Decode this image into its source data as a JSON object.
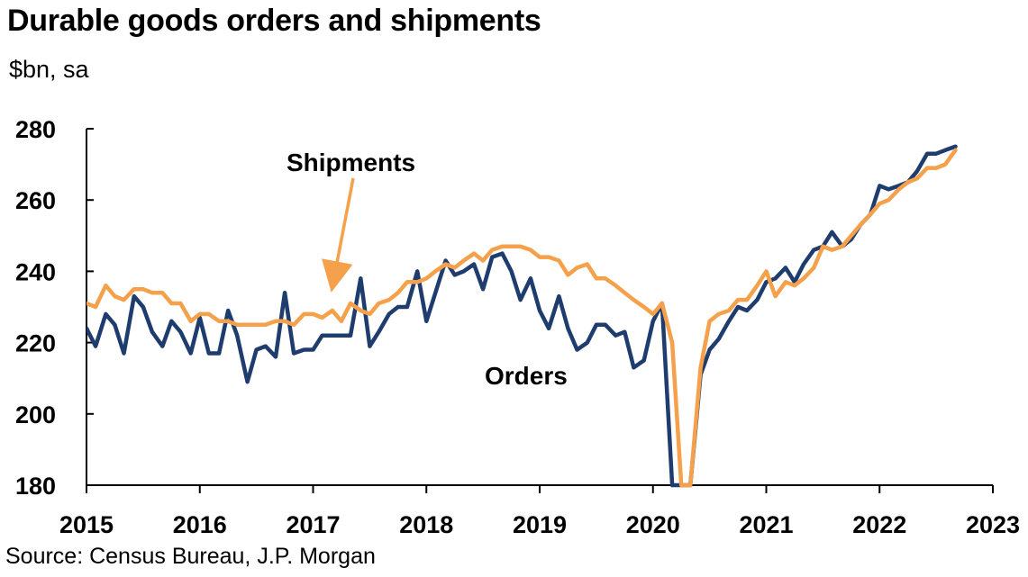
{
  "header": {
    "title": "Durable goods orders and shipments",
    "subtitle": "$bn, sa"
  },
  "footer": {
    "source": "Source: Census Bureau, J.P. Morgan"
  },
  "colors": {
    "orders": "#1F3C6E",
    "shipments": "#F5A04A"
  },
  "chart_data": {
    "type": "line",
    "title": "Durable goods orders and shipments",
    "ylabel": "$bn, sa",
    "ylim": [
      180,
      280
    ],
    "yticks": [
      180,
      200,
      220,
      240,
      260,
      280
    ],
    "xlim": [
      2015,
      2023
    ],
    "xticks": [
      "2015",
      "2016",
      "2017",
      "2018",
      "2019",
      "2020",
      "2021",
      "2022",
      "2023"
    ],
    "grid": false,
    "legend": "inline labels",
    "annotations": [
      {
        "text": "Shipments",
        "points_to": "Shipments"
      },
      {
        "text": "Orders",
        "points_to": "Orders"
      }
    ],
    "series": [
      {
        "name": "Orders",
        "x": [
          2015.0,
          2015.08,
          2015.17,
          2015.25,
          2015.33,
          2015.42,
          2015.5,
          2015.58,
          2015.67,
          2015.75,
          2015.83,
          2015.92,
          2016.0,
          2016.08,
          2016.17,
          2016.25,
          2016.33,
          2016.42,
          2016.5,
          2016.58,
          2016.67,
          2016.75,
          2016.83,
          2016.92,
          2017.0,
          2017.08,
          2017.17,
          2017.25,
          2017.33,
          2017.42,
          2017.5,
          2017.58,
          2017.67,
          2017.75,
          2017.83,
          2017.92,
          2018.0,
          2018.08,
          2018.17,
          2018.25,
          2018.33,
          2018.42,
          2018.5,
          2018.58,
          2018.67,
          2018.75,
          2018.83,
          2018.92,
          2019.0,
          2019.08,
          2019.17,
          2019.25,
          2019.33,
          2019.42,
          2019.5,
          2019.58,
          2019.67,
          2019.75,
          2019.83,
          2019.92,
          2020.0,
          2020.08,
          2020.17,
          2020.25,
          2020.33,
          2020.42,
          2020.5,
          2020.58,
          2020.67,
          2020.75,
          2020.83,
          2020.92,
          2021.0,
          2021.08,
          2021.17,
          2021.25,
          2021.33,
          2021.42,
          2021.5,
          2021.58,
          2021.67,
          2021.75,
          2021.83,
          2021.92,
          2022.0,
          2022.08,
          2022.17,
          2022.25,
          2022.33,
          2022.42,
          2022.5,
          2022.58,
          2022.67
        ],
        "values": [
          224,
          219,
          228,
          225,
          217,
          233,
          230,
          223,
          219,
          226,
          223,
          217,
          227,
          217,
          217,
          229,
          222,
          209,
          218,
          219,
          216,
          234,
          217,
          218,
          218,
          222,
          222,
          222,
          222,
          238,
          219,
          223,
          228,
          230,
          230,
          240,
          226,
          234,
          243,
          239,
          240,
          242,
          235,
          244,
          245,
          240,
          232,
          238,
          229,
          224,
          233,
          224,
          218,
          220,
          225,
          225,
          222,
          223,
          213,
          215,
          226,
          231,
          180,
          180,
          180,
          211,
          218,
          221,
          226,
          230,
          229,
          232,
          237,
          238,
          241,
          237,
          242,
          246,
          247,
          251,
          247,
          249,
          253,
          256,
          264,
          263,
          264,
          265,
          268,
          273,
          273,
          274,
          275
        ]
      },
      {
        "name": "Shipments",
        "x": [
          2015.0,
          2015.08,
          2015.17,
          2015.25,
          2015.33,
          2015.42,
          2015.5,
          2015.58,
          2015.67,
          2015.75,
          2015.83,
          2015.92,
          2016.0,
          2016.08,
          2016.17,
          2016.25,
          2016.33,
          2016.42,
          2016.5,
          2016.58,
          2016.67,
          2016.75,
          2016.83,
          2016.92,
          2017.0,
          2017.08,
          2017.17,
          2017.25,
          2017.33,
          2017.42,
          2017.5,
          2017.58,
          2017.67,
          2017.75,
          2017.83,
          2017.92,
          2018.0,
          2018.08,
          2018.17,
          2018.25,
          2018.33,
          2018.42,
          2018.5,
          2018.58,
          2018.67,
          2018.75,
          2018.83,
          2018.92,
          2019.0,
          2019.08,
          2019.17,
          2019.25,
          2019.33,
          2019.42,
          2019.5,
          2019.58,
          2019.67,
          2019.75,
          2019.83,
          2019.92,
          2020.0,
          2020.08,
          2020.17,
          2020.25,
          2020.33,
          2020.42,
          2020.5,
          2020.58,
          2020.67,
          2020.75,
          2020.83,
          2020.92,
          2021.0,
          2021.08,
          2021.17,
          2021.25,
          2021.33,
          2021.42,
          2021.5,
          2021.58,
          2021.67,
          2021.75,
          2021.83,
          2021.92,
          2022.0,
          2022.08,
          2022.17,
          2022.25,
          2022.33,
          2022.42,
          2022.5,
          2022.58,
          2022.67
        ],
        "values": [
          231,
          230,
          236,
          233,
          232,
          235,
          235,
          234,
          234,
          231,
          231,
          226,
          228,
          228,
          226,
          226,
          225,
          225,
          225,
          225,
          226,
          226,
          225,
          228,
          228,
          227,
          229,
          226,
          231,
          229,
          228,
          231,
          232,
          234,
          237,
          237,
          238,
          240,
          242,
          241,
          243,
          245,
          243,
          246,
          247,
          247,
          247,
          246,
          244,
          244,
          243,
          239,
          241,
          242,
          238,
          238,
          236,
          234,
          232,
          230,
          228,
          231,
          220,
          180,
          180,
          213,
          226,
          228,
          229,
          232,
          232,
          236,
          240,
          233,
          237,
          236,
          238,
          241,
          247,
          246,
          247,
          250,
          253,
          256,
          259,
          260,
          263,
          265,
          266,
          269,
          269,
          270,
          274
        ]
      }
    ]
  }
}
